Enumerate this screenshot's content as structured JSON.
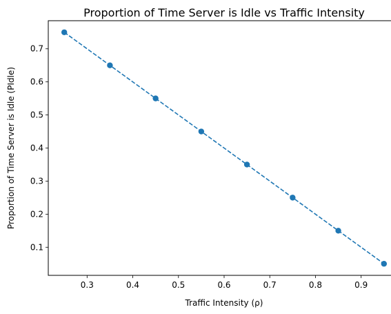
{
  "chart_data": {
    "type": "line",
    "title": "Proportion of Time Server is Idle vs Traffic Intensity",
    "xlabel": "Traffic Intensity (ρ)",
    "ylabel": "Proportion of Time Server is Idle (PIdle)",
    "xlim": [
      0.215,
      0.985
    ],
    "ylim": [
      0.015,
      0.785
    ],
    "x_ticks": [
      "0.3",
      "0.4",
      "0.5",
      "0.6",
      "0.7",
      "0.8",
      "0.9"
    ],
    "y_ticks": [
      "0.1",
      "0.2",
      "0.3",
      "0.4",
      "0.5",
      "0.6",
      "0.7"
    ],
    "grid": false,
    "series": [
      {
        "x": [
          0.25,
          0.35,
          0.45,
          0.55,
          0.65,
          0.75,
          0.85,
          0.95
        ],
        "y": [
          0.75,
          0.65,
          0.55,
          0.45,
          0.35,
          0.25,
          0.15,
          0.05
        ],
        "color": "#1f77b4",
        "line_style": "dashed",
        "marker": "circle"
      }
    ]
  }
}
